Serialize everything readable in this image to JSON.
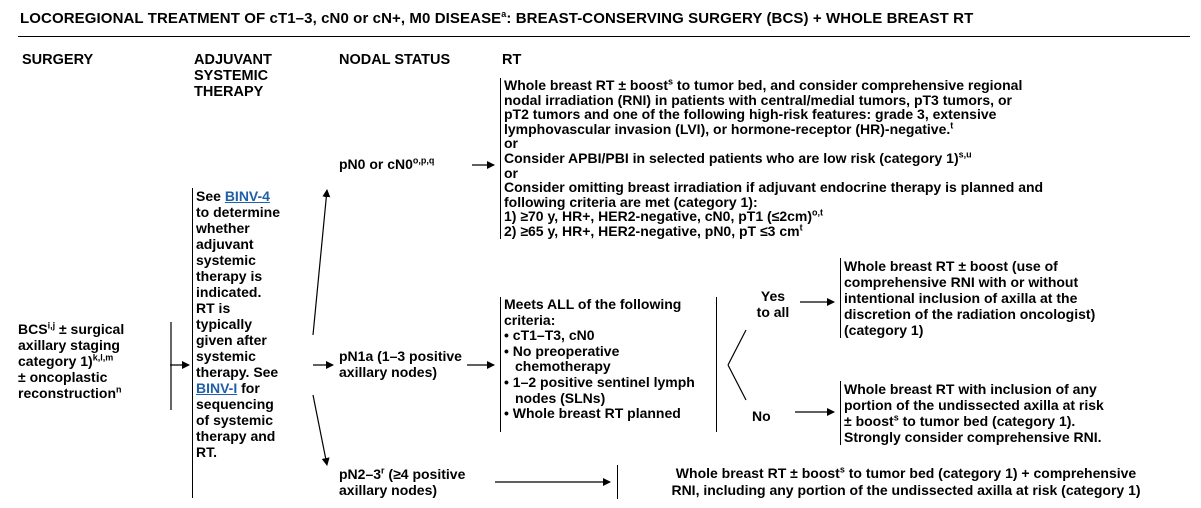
{
  "title": {
    "main": "LOCOREGIONAL TREATMENT OF cT1–3, cN0 or cN+, M0 DISEASE",
    "sup": "a",
    "rest": ": BREAST-CONSERVING SURGERY (BCS) + WHOLE BREAST RT"
  },
  "headers": {
    "surgery": "SURGERY",
    "adjuvant": [
      "ADJUVANT",
      "SYSTEMIC",
      "THERAPY"
    ],
    "nodal": "NODAL STATUS",
    "rt": "RT"
  },
  "surgery_box": {
    "l1": "BCS",
    "l1_sup": "i,j",
    "l1_rest": " ± surgical",
    "l2": "axillary staging",
    "l3": "category 1)",
    "l3_sup": "k,l,m",
    "l4": "± oncoplastic",
    "l5": "reconstruction",
    "l5_sup": "n"
  },
  "adjuvant_box": {
    "see": "See ",
    "link1": "BINV-4",
    "lines_a": [
      "to determine",
      "whether",
      "adjuvant",
      "systemic",
      "therapy is",
      "indicated.",
      "RT is",
      "typically",
      "given after",
      "systemic",
      "therapy. See"
    ],
    "link2": "BINV-I",
    "link2_rest": " for",
    "lines_b": [
      "sequencing",
      "of systemic",
      "therapy and",
      "RT."
    ]
  },
  "nodal": {
    "pn0": "pN0 or cN0",
    "pn0_sup": "o,p,q",
    "pn1a_l1": "pN1a (1–3 positive",
    "pn1a_l2": "axillary nodes)",
    "pn23_l1a": "pN2–3",
    "pn23_sup": "r",
    "pn23_l1b": " (≥4 positive",
    "pn23_l2": "axillary nodes)"
  },
  "rt_pn0": {
    "l1a": "Whole breast RT ± boost",
    "l1_sup": "s",
    "l1b": " to tumor bed, and consider comprehensive regional",
    "l2": "nodal irradiation (RNI) in patients with central/medial tumors, pT3 tumors, or",
    "l3": "pT2 tumors and one of the following high-risk features: grade 3, extensive",
    "l4a": "lymphovascular invasion (LVI), or hormone-receptor (HR)-negative.",
    "l4_sup": "t",
    "or1": "or",
    "l5a": "Consider APBI/PBI in selected patients who are low risk (category 1)",
    "l5_sup": "s,u",
    "or2": "or",
    "l6": "Consider omitting breast irradiation if adjuvant endocrine therapy is planned and",
    "l7": "following criteria are met (category 1):",
    "l8a": "1) ≥70 y, HR+, HER2-negative, cN0, pT1 (≤2cm)",
    "l8_sup": "o,t",
    "l9a": "2) ≥65 y, HR+, HER2-negative, pN0, pT ≤3 cm",
    "l9_sup": "t"
  },
  "criteria": {
    "l1": "Meets ALL of the following",
    "l2": "criteria:",
    "items": [
      "• cT1–T3, cN0",
      "• No preoperative chemotherapy",
      "• 1–2 positive sentinel lymph nodes (SLNs)",
      "• Whole breast RT planned"
    ]
  },
  "branch": {
    "yes_l1": "Yes",
    "yes_l2": "to all",
    "no": "No"
  },
  "outcome_yes": [
    "Whole breast RT ± boost (use of",
    "comprehensive RNI with or without",
    "intentional inclusion of axilla at the",
    "discretion of the radiation oncologist)",
    "(category 1)"
  ],
  "outcome_no": {
    "l1": "Whole breast RT with inclusion of any",
    "l2": "portion of the undissected axilla at risk",
    "l3a": "± boost",
    "l3_sup": "s",
    "l3b": " to tumor bed (category 1).",
    "l4": "Strongly consider comprehensive RNI."
  },
  "outcome_pn23": {
    "l1a": "Whole breast RT ± boost",
    "l1_sup": "s",
    "l1b": " to tumor bed (category 1) + comprehensive",
    "l2": "RNI, including any portion of the undissected axilla at risk (category 1)"
  }
}
